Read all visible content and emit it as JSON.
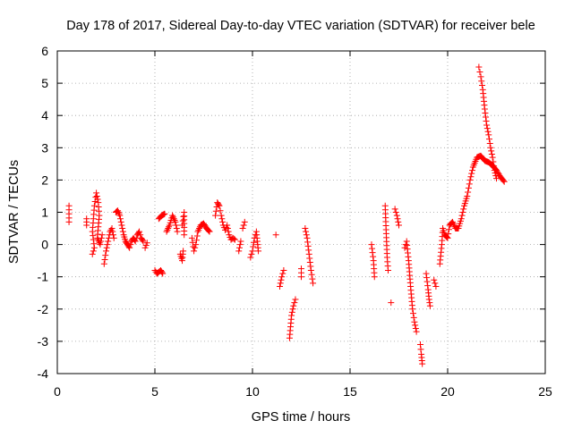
{
  "chart_data": {
    "type": "scatter",
    "title": "Day 178 of 2017, Sidereal Day-to-day VTEC variation (SDTVAR) for receiver bele",
    "xlabel": "GPS time / hours",
    "ylabel": "SDTVAR / TECUs",
    "xlim": [
      0,
      25
    ],
    "ylim": [
      -4,
      6
    ],
    "xticks": [
      0,
      5,
      10,
      15,
      20,
      25
    ],
    "yticks": [
      -4,
      -3,
      -2,
      -1,
      0,
      1,
      2,
      3,
      4,
      5,
      6
    ],
    "xtick_labels": [
      "0",
      "5",
      "10",
      "15",
      "20",
      "25"
    ],
    "ytick_labels": [
      "-4",
      "-3",
      "-2",
      "-1",
      "0",
      "1",
      "2",
      "3",
      "4",
      "5",
      "6"
    ],
    "grid": true,
    "marker": "+",
    "marker_color": "#ff0000",
    "series": [
      {
        "name": "SDTVAR",
        "segments": [
          {
            "points": [
              [
                0.6,
                1.2
              ],
              [
                0.6,
                0.7
              ]
            ]
          },
          {
            "points": [
              [
                1.5,
                0.8
              ],
              [
                1.5,
                0.6
              ]
            ]
          },
          {
            "points": [
              [
                1.8,
                -0.3
              ],
              [
                1.9,
                -0.1
              ],
              [
                1.8,
                0.4
              ],
              [
                1.85,
                0.8
              ],
              [
                1.9,
                1.2
              ],
              [
                2.0,
                1.6
              ],
              [
                2.1,
                1.3
              ],
              [
                2.15,
                0.9
              ],
              [
                2.05,
                0.2
              ],
              [
                2.2,
                0.0
              ],
              [
                2.3,
                0.3
              ]
            ]
          },
          {
            "points": [
              [
                2.4,
                -0.6
              ],
              [
                2.5,
                -0.2
              ],
              [
                2.6,
                0.1
              ],
              [
                2.7,
                0.4
              ],
              [
                2.8,
                0.5
              ],
              [
                2.9,
                0.2
              ]
            ]
          },
          {
            "points": [
              [
                3.0,
                1.0
              ],
              [
                3.1,
                1.05
              ],
              [
                3.2,
                0.9
              ],
              [
                3.3,
                0.6
              ],
              [
                3.4,
                0.3
              ],
              [
                3.5,
                0.1
              ],
              [
                3.6,
                0.0
              ],
              [
                3.7,
                -0.1
              ],
              [
                3.8,
                0.1
              ],
              [
                3.9,
                0.2
              ],
              [
                4.0,
                0.1
              ],
              [
                4.1,
                0.3
              ],
              [
                4.2,
                0.4
              ],
              [
                4.3,
                0.2
              ],
              [
                4.4,
                0.1
              ]
            ]
          },
          {
            "points": [
              [
                4.5,
                -0.1
              ],
              [
                4.6,
                0.05
              ]
            ]
          },
          {
            "points": [
              [
                5.0,
                -0.8
              ],
              [
                5.1,
                -0.9
              ],
              [
                5.2,
                -0.85
              ],
              [
                5.3,
                -0.8
              ],
              [
                5.4,
                -0.9
              ]
            ]
          },
          {
            "points": [
              [
                5.2,
                0.8
              ],
              [
                5.35,
                0.9
              ],
              [
                5.5,
                0.95
              ]
            ]
          },
          {
            "points": [
              [
                5.6,
                0.4
              ],
              [
                5.75,
                0.6
              ],
              [
                5.9,
                0.9
              ],
              [
                6.05,
                0.7
              ],
              [
                6.15,
                0.4
              ]
            ]
          },
          {
            "points": [
              [
                6.3,
                -0.3
              ],
              [
                6.4,
                -0.5
              ],
              [
                6.45,
                -0.2
              ]
            ]
          },
          {
            "points": [
              [
                6.4,
                0.6
              ],
              [
                6.5,
                1.0
              ],
              [
                6.5,
                0.3
              ]
            ]
          },
          {
            "points": [
              [
                6.9,
                0.2
              ],
              [
                7.0,
                -0.2
              ],
              [
                7.1,
                0.0
              ],
              [
                7.2,
                0.4
              ],
              [
                7.35,
                0.6
              ],
              [
                7.5,
                0.65
              ],
              [
                7.65,
                0.5
              ],
              [
                7.8,
                0.4
              ]
            ]
          },
          {
            "points": [
              [
                8.1,
                0.9
              ],
              [
                8.2,
                1.3
              ],
              [
                8.3,
                1.2
              ],
              [
                8.4,
                0.9
              ],
              [
                8.5,
                0.6
              ],
              [
                8.6,
                0.45
              ],
              [
                8.7,
                0.6
              ],
              [
                8.8,
                0.3
              ],
              [
                8.9,
                0.15
              ],
              [
                9.0,
                0.2
              ],
              [
                9.1,
                0.15
              ]
            ]
          },
          {
            "points": [
              [
                9.3,
                -0.2
              ],
              [
                9.4,
                0.1
              ]
            ]
          },
          {
            "points": [
              [
                9.5,
                0.5
              ],
              [
                9.6,
                0.7
              ]
            ]
          },
          {
            "points": [
              [
                9.9,
                -0.4
              ],
              [
                10.0,
                -0.2
              ],
              [
                10.1,
                0.2
              ],
              [
                10.2,
                0.4
              ],
              [
                10.25,
                0.1
              ],
              [
                10.3,
                -0.2
              ]
            ]
          },
          {
            "points": [
              [
                11.2,
                0.3
              ]
            ]
          },
          {
            "points": [
              [
                11.4,
                -1.3
              ],
              [
                11.5,
                -1.0
              ],
              [
                11.6,
                -0.8
              ]
            ]
          },
          {
            "points": [
              [
                11.9,
                -2.9
              ],
              [
                12.0,
                -2.2
              ],
              [
                12.1,
                -1.9
              ],
              [
                12.2,
                -1.7
              ]
            ]
          },
          {
            "points": [
              [
                12.5,
                -1.0
              ],
              [
                12.5,
                -0.75
              ]
            ]
          },
          {
            "points": [
              [
                12.7,
                0.5
              ],
              [
                12.8,
                0.2
              ],
              [
                12.9,
                -0.3
              ],
              [
                13.0,
                -0.8
              ],
              [
                13.1,
                -1.2
              ]
            ]
          },
          {
            "points": [
              [
                16.1,
                0.0
              ],
              [
                16.2,
                -0.5
              ],
              [
                16.25,
                -1.0
              ]
            ]
          },
          {
            "points": [
              [
                16.8,
                1.2
              ],
              [
                16.9,
                -0.4
              ],
              [
                16.95,
                -0.8
              ]
            ]
          },
          {
            "points": [
              [
                17.1,
                -1.8
              ]
            ]
          },
          {
            "points": [
              [
                17.3,
                1.1
              ],
              [
                17.4,
                0.9
              ],
              [
                17.5,
                0.6
              ]
            ]
          },
          {
            "points": [
              [
                17.8,
                -0.1
              ],
              [
                17.9,
                0.1
              ],
              [
                18.0,
                -0.5
              ],
              [
                18.1,
                -1.3
              ],
              [
                18.2,
                -2.0
              ],
              [
                18.3,
                -2.4
              ],
              [
                18.4,
                -2.7
              ]
            ]
          },
          {
            "points": [
              [
                18.6,
                -3.1
              ],
              [
                18.65,
                -3.4
              ],
              [
                18.7,
                -3.7
              ]
            ]
          },
          {
            "points": [
              [
                18.9,
                -0.9
              ],
              [
                19.0,
                -1.4
              ],
              [
                19.05,
                -1.7
              ],
              [
                19.1,
                -1.9
              ]
            ]
          },
          {
            "points": [
              [
                19.3,
                -1.1
              ],
              [
                19.4,
                -1.3
              ]
            ]
          },
          {
            "points": [
              [
                19.6,
                -0.6
              ],
              [
                19.7,
                0.0
              ],
              [
                19.75,
                0.5
              ],
              [
                19.85,
                0.3
              ],
              [
                20.0,
                0.2
              ],
              [
                20.1,
                0.6
              ],
              [
                20.25,
                0.7
              ],
              [
                20.4,
                0.5
              ],
              [
                20.55,
                0.5
              ],
              [
                20.7,
                0.8
              ],
              [
                20.85,
                1.2
              ],
              [
                21.0,
                1.5
              ],
              [
                21.15,
                2.0
              ],
              [
                21.3,
                2.4
              ],
              [
                21.5,
                2.7
              ],
              [
                21.7,
                2.75
              ],
              [
                21.9,
                2.6
              ],
              [
                22.1,
                2.55
              ],
              [
                22.3,
                2.45
              ],
              [
                22.5,
                2.3
              ],
              [
                22.7,
                2.1
              ],
              [
                22.9,
                1.95
              ]
            ]
          },
          {
            "points": [
              [
                21.6,
                5.5
              ],
              [
                21.7,
                5.2
              ],
              [
                21.8,
                4.8
              ],
              [
                21.9,
                4.2
              ],
              [
                22.0,
                3.7
              ],
              [
                22.1,
                3.4
              ],
              [
                22.2,
                3.0
              ],
              [
                22.3,
                2.7
              ],
              [
                22.4,
                2.3
              ],
              [
                22.5,
                2.05
              ]
            ]
          }
        ]
      }
    ]
  }
}
